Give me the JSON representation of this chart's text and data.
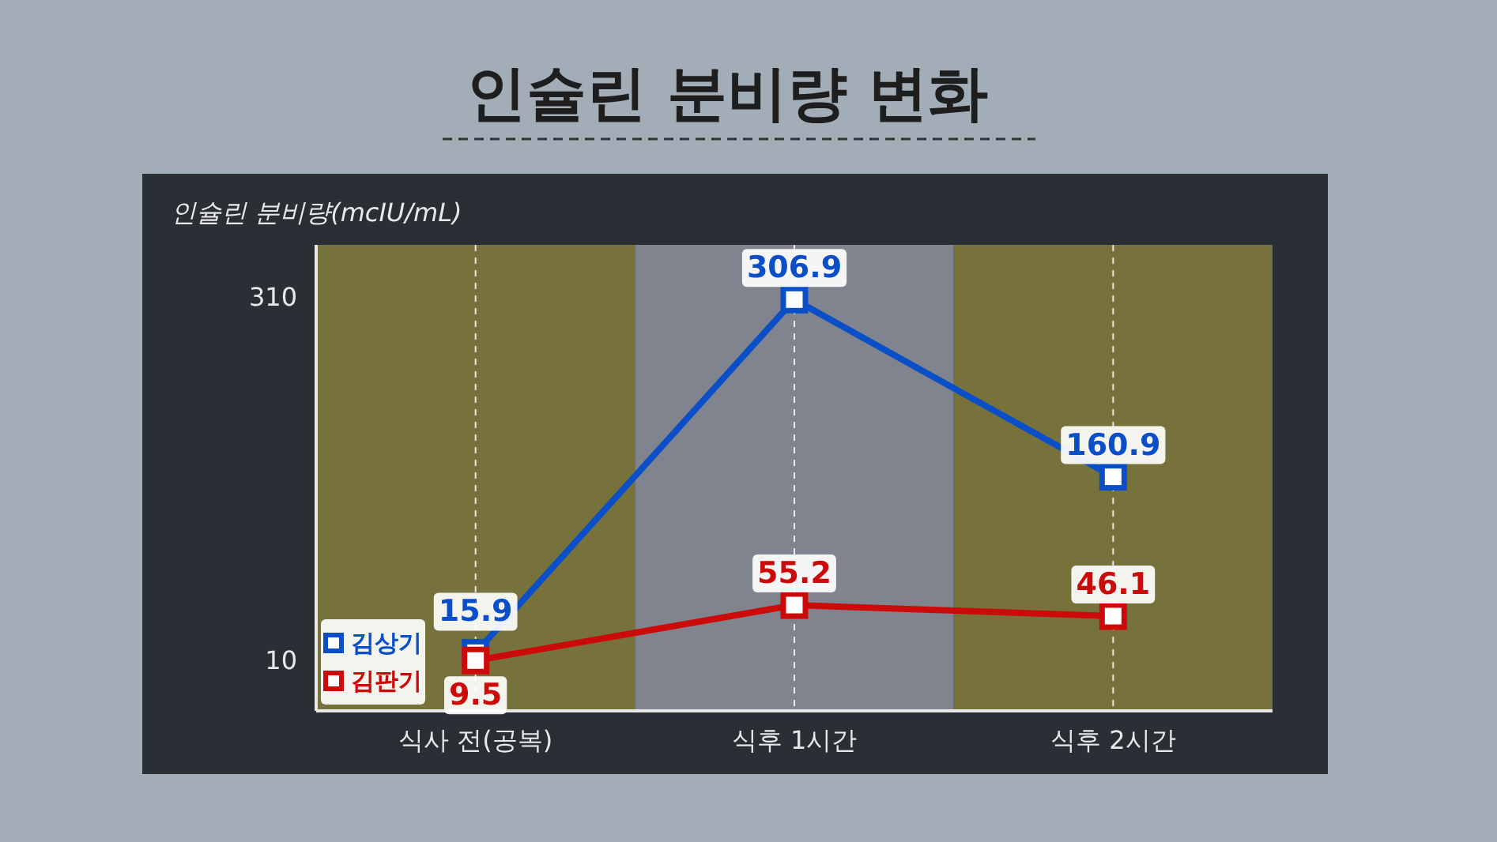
{
  "chart_data": {
    "type": "line",
    "title": "인슐린 분비량 변화",
    "ylabel": "인슐린 분비량(mcIU/mL)",
    "categories": [
      "식사 전(공복)",
      "식후 1시간",
      "식후 2시간"
    ],
    "series": [
      {
        "name": "김상기",
        "color": "#0a4fc8",
        "values": [
          15.9,
          306.9,
          160.9
        ]
      },
      {
        "name": "김판기",
        "color": "#cc0a0a",
        "values": [
          9.5,
          55.2,
          46.1
        ]
      }
    ],
    "ylim": [
      -32,
      352
    ],
    "yticks": [
      10,
      310
    ],
    "grid": "x",
    "marker": "square",
    "line_style": "solid",
    "data_labels": true,
    "legend": "bottom left",
    "bands": [
      {
        "axis": "x",
        "from": "식사 전(공복)",
        "to": "식사 전(공복)",
        "color": "#807a3c"
      },
      {
        "axis": "x",
        "from": "식후 1시간",
        "to": "식후 1시간",
        "color": "#8a8e98"
      },
      {
        "axis": "x",
        "from": "식후 2시간",
        "to": "식후 2시간",
        "color": "#807a3c"
      }
    ]
  }
}
